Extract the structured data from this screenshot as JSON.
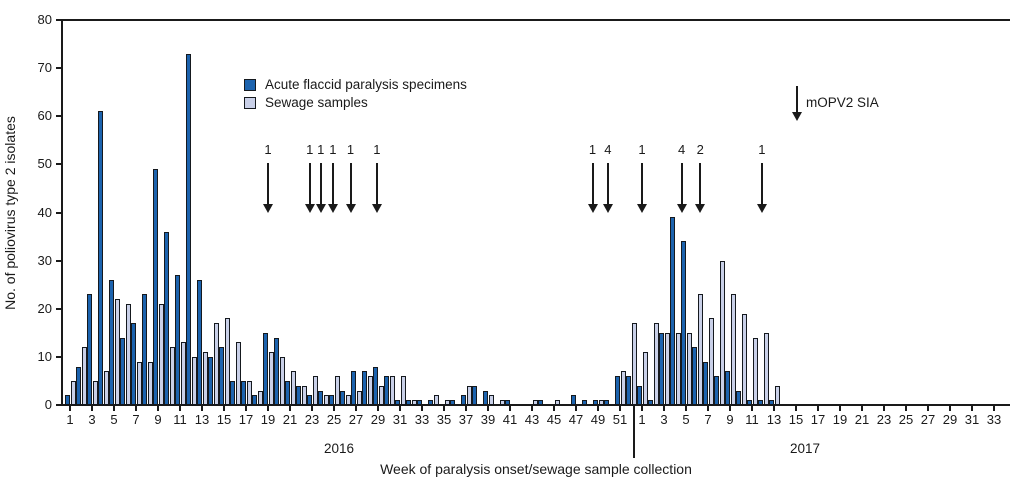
{
  "chart_data": {
    "type": "bar",
    "title": "",
    "ylabel": "No. of poliovirus type 2 isolates",
    "xlabel": "Week of paralysis onset/sewage sample collection",
    "ylim": [
      0,
      80
    ],
    "y_ticks": [
      0,
      10,
      20,
      30,
      40,
      50,
      60,
      70,
      80
    ],
    "grid": "off",
    "legend_position": "inside-top-left-of-plot",
    "legend": {
      "entries": [
        {
          "label": "Acute flaccid paralysis specimens",
          "color": "#1c63ae"
        },
        {
          "label": "Sewage samples",
          "color": "#c9d0e8"
        }
      ]
    },
    "annotation": {
      "label": "mOPV2 SIA",
      "week": 67.1
    },
    "sia_arrows": [
      {
        "label": "1",
        "week": 19.0
      },
      {
        "label": "1",
        "week": 22.8
      },
      {
        "label": "1",
        "week": 23.8
      },
      {
        "label": "1",
        "week": 24.9
      },
      {
        "label": "1",
        "week": 26.5
      },
      {
        "label": "1",
        "week": 28.9
      },
      {
        "label": "1",
        "week": 48.5
      },
      {
        "label": "4",
        "week": 49.9
      },
      {
        "label": "1",
        "week": 53.0
      },
      {
        "label": "4",
        "week": 56.6
      },
      {
        "label": "2",
        "week": 58.3
      },
      {
        "label": "1",
        "week": 63.9
      }
    ],
    "year_groups": [
      {
        "year": "2016",
        "weeks": 52,
        "x_tick_labels": [
          1,
          3,
          5,
          7,
          9,
          11,
          13,
          15,
          17,
          19,
          21,
          23,
          25,
          27,
          29,
          31,
          33,
          35,
          37,
          39,
          41,
          43,
          45,
          47,
          49,
          51
        ],
        "series": {
          "afp": [
            2,
            8,
            23,
            61,
            26,
            14,
            17,
            23,
            49,
            36,
            27,
            73,
            26,
            10,
            12,
            5,
            5,
            2,
            15,
            14,
            5,
            4,
            2,
            3,
            2,
            3,
            7,
            7,
            8,
            6,
            1,
            1,
            1,
            1,
            0,
            1,
            2,
            4,
            3,
            0,
            1,
            0,
            0,
            1,
            0,
            0,
            2,
            1,
            1,
            1,
            6,
            6
          ],
          "sewage": [
            5,
            12,
            5,
            7,
            22,
            21,
            9,
            9,
            21,
            12,
            13,
            10,
            11,
            17,
            18,
            13,
            5,
            3,
            11,
            10,
            7,
            4,
            6,
            2,
            6,
            2,
            3,
            6,
            4,
            6,
            6,
            1,
            0,
            2,
            1,
            0,
            4,
            0,
            2,
            1,
            0,
            0,
            1,
            0,
            1,
            0,
            0,
            0,
            1,
            0,
            7,
            17
          ]
        }
      },
      {
        "year": "2017",
        "weeks": 33,
        "x_tick_labels": [
          1,
          3,
          5,
          7,
          9,
          11,
          13,
          15,
          17,
          19,
          21,
          23,
          25,
          27,
          29,
          31,
          33
        ],
        "series": {
          "afp": [
            4,
            1,
            15,
            39,
            34,
            12,
            9,
            6,
            7,
            3,
            1,
            1,
            1,
            0,
            0,
            0,
            0,
            0,
            0,
            0,
            0,
            0,
            0,
            0,
            0,
            0,
            0,
            0,
            0,
            0,
            0,
            0,
            0
          ],
          "sewage": [
            11,
            17,
            15,
            15,
            15,
            23,
            18,
            30,
            23,
            19,
            14,
            15,
            4,
            0,
            0,
            0,
            0,
            0,
            0,
            0,
            0,
            0,
            0,
            0,
            0,
            0,
            0,
            0,
            0,
            0,
            0,
            0,
            0
          ]
        }
      }
    ],
    "colors": {
      "afp": "#1c63ae",
      "sewage": "#c9d0e8",
      "bar_border": "#15191e",
      "axis": "#1a1a1a"
    }
  }
}
